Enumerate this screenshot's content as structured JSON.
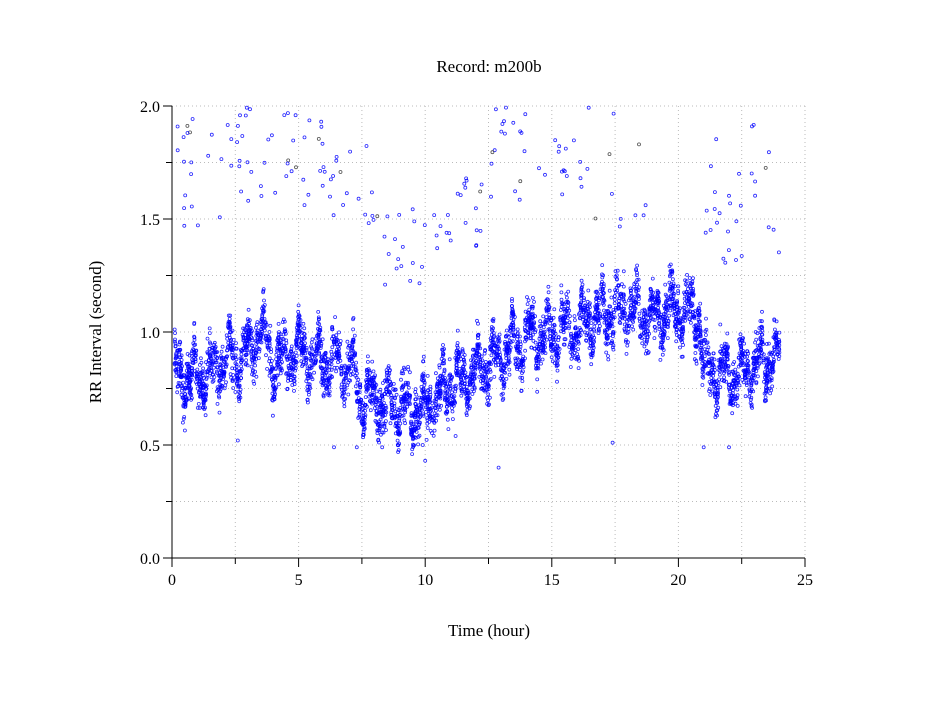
{
  "chart_data": {
    "type": "scatter",
    "title": "Record:  m200b",
    "xlabel": "Time (hour)",
    "ylabel": "RR Interval (second)",
    "xlim": [
      0,
      25
    ],
    "ylim": [
      0,
      2.0
    ],
    "xticks": [
      "0",
      "5",
      "10",
      "15",
      "20",
      "25"
    ],
    "xtick_values": [
      0,
      5,
      10,
      15,
      20,
      25
    ],
    "yticks": [
      "0.0",
      "0.5",
      "1.0",
      "1.5",
      "2.0"
    ],
    "ytick_values": [
      0,
      0.5,
      1.0,
      1.5,
      2.0
    ],
    "grid": true,
    "grid_x_step": 2.5,
    "grid_y_step": 0.25,
    "marker_color": "#0000ff",
    "x_range_of_data": [
      0.1,
      24.0
    ],
    "main_band_trend": {
      "hours": [
        0,
        1,
        2,
        3,
        3.5,
        4,
        5,
        6,
        7,
        7.5,
        8,
        9,
        10,
        11,
        12,
        13,
        14,
        15,
        16,
        17,
        18,
        19,
        20,
        20.8,
        21,
        22,
        23,
        24
      ],
      "mean_rr": [
        0.83,
        0.8,
        0.86,
        0.9,
        1.02,
        0.86,
        0.92,
        0.87,
        0.85,
        0.72,
        0.7,
        0.68,
        0.65,
        0.78,
        0.82,
        0.9,
        0.97,
        1.0,
        1.02,
        1.08,
        1.1,
        1.07,
        1.1,
        1.08,
        0.85,
        0.8,
        0.85,
        0.9
      ],
      "spread": 0.09
    },
    "outlier_bands": [
      {
        "from": 0.2,
        "to": 2.5,
        "low": 1.35,
        "high": 1.95,
        "count": 22
      },
      {
        "from": 2.5,
        "to": 6.0,
        "low": 1.55,
        "high": 2.0,
        "count": 40
      },
      {
        "from": 6.0,
        "to": 8.0,
        "low": 1.45,
        "high": 1.9,
        "count": 18
      },
      {
        "from": 8.0,
        "to": 10.0,
        "low": 1.2,
        "high": 1.55,
        "count": 18
      },
      {
        "from": 10.0,
        "to": 12.5,
        "low": 1.35,
        "high": 1.7,
        "count": 22
      },
      {
        "from": 12.5,
        "to": 16.5,
        "low": 1.55,
        "high": 2.0,
        "count": 35
      },
      {
        "from": 16.5,
        "to": 19.5,
        "low": 1.45,
        "high": 2.0,
        "count": 10
      },
      {
        "from": 21.0,
        "to": 24.0,
        "low": 1.3,
        "high": 1.95,
        "count": 30
      }
    ],
    "low_outliers": [
      [
        2.6,
        0.52
      ],
      [
        6.4,
        0.49
      ],
      [
        7.3,
        0.49
      ],
      [
        8.3,
        0.49
      ],
      [
        9.9,
        0.5
      ],
      [
        10.0,
        0.43
      ],
      [
        11.2,
        0.54
      ],
      [
        12.9,
        0.4
      ],
      [
        17.4,
        0.51
      ],
      [
        21.0,
        0.49
      ],
      [
        22.0,
        0.49
      ]
    ]
  }
}
